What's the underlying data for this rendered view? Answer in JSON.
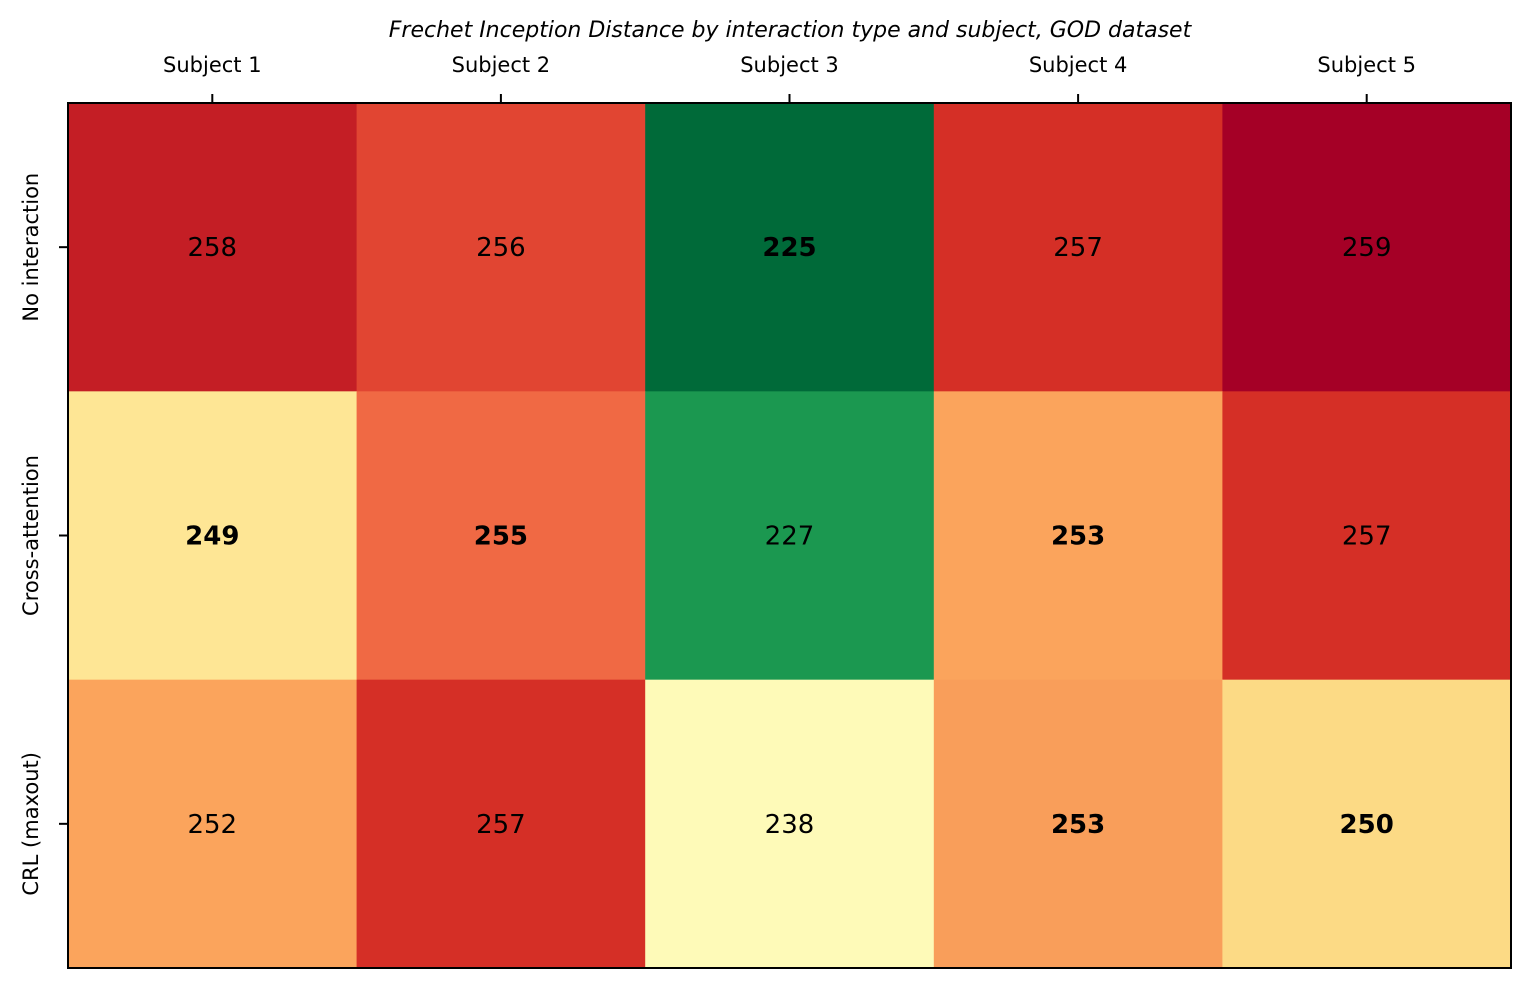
{
  "chart_data": {
    "type": "heatmap",
    "title": "Frechet Inception Distance by interaction type and subject, GOD dataset",
    "columns": [
      "Subject 1",
      "Subject 2",
      "Subject 3",
      "Subject 4",
      "Subject 5"
    ],
    "rows": [
      "No interaction",
      "Cross-attention",
      "CRL (maxout)"
    ],
    "values": [
      [
        258,
        256,
        225,
        257,
        259
      ],
      [
        249,
        255,
        227,
        253,
        257
      ],
      [
        252,
        257,
        238,
        253,
        250
      ]
    ],
    "bold": [
      [
        false,
        false,
        true,
        false,
        false
      ],
      [
        true,
        true,
        false,
        true,
        false
      ],
      [
        false,
        false,
        false,
        true,
        true
      ]
    ],
    "cell_colors": [
      [
        "#c41e25",
        "#e14532",
        "#006a39",
        "#d52f26",
        "#a50026"
      ],
      [
        "#fee695",
        "#f06944",
        "#1b9850",
        "#fba45c",
        "#d52f26"
      ],
      [
        "#fba45c",
        "#d52f26",
        "#fefab8",
        "#f99e5a",
        "#fcda85"
      ]
    ],
    "colormap": "RdYlGn",
    "legend": "none",
    "grid": false
  }
}
